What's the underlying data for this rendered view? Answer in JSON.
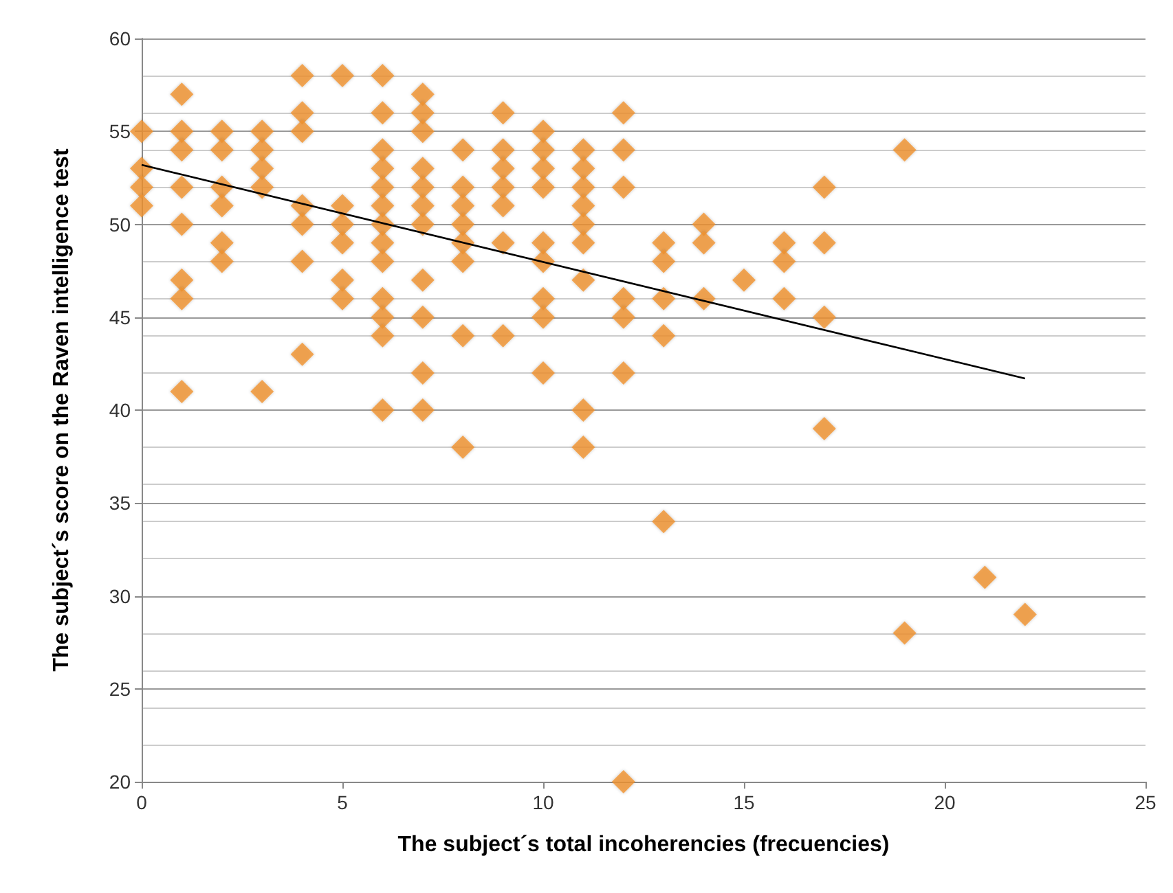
{
  "chart_data": {
    "type": "scatter",
    "xlabel": "The subject´s total incoherencies (frecuencies)",
    "ylabel": "The subject´s score on the Raven intelligence test",
    "xlim": [
      0,
      25
    ],
    "xticks": [
      0,
      5,
      10,
      15,
      20,
      25
    ],
    "ylim": [
      20,
      60
    ],
    "yticks": [
      20,
      25,
      30,
      35,
      40,
      45,
      50,
      55,
      60
    ],
    "grid": "y",
    "marker": "diamond",
    "series": [
      {
        "color": "#f0922e",
        "x": [
          0,
          0,
          0,
          0,
          1,
          1,
          1,
          1,
          1,
          1,
          1,
          1,
          2,
          2,
          2,
          2,
          2,
          2,
          3,
          3,
          3,
          3,
          3,
          4,
          4,
          4,
          4,
          4,
          4,
          4,
          5,
          5,
          5,
          5,
          5,
          5,
          6,
          6,
          6,
          6,
          6,
          6,
          6,
          6,
          6,
          6,
          6,
          6,
          6,
          7,
          7,
          7,
          7,
          7,
          7,
          7,
          7,
          7,
          7,
          7,
          8,
          8,
          8,
          8,
          8,
          8,
          8,
          8,
          9,
          9,
          9,
          9,
          9,
          9,
          9,
          10,
          10,
          10,
          10,
          10,
          10,
          10,
          10,
          10,
          11,
          11,
          11,
          11,
          11,
          11,
          11,
          11,
          11,
          12,
          12,
          12,
          12,
          12,
          12,
          12,
          13,
          13,
          13,
          13,
          13,
          14,
          14,
          14,
          15,
          16,
          16,
          16,
          17,
          17,
          17,
          17,
          19,
          19,
          21,
          22
        ],
        "values": [
          55,
          53,
          52,
          51,
          57,
          55,
          54,
          52,
          50,
          47,
          46,
          41,
          55,
          54,
          52,
          51,
          49,
          48,
          55,
          54,
          53,
          52,
          41,
          58,
          56,
          55,
          51,
          50,
          48,
          43,
          58,
          51,
          50,
          49,
          47,
          46,
          58,
          56,
          54,
          53,
          52,
          51,
          50,
          49,
          48,
          46,
          45,
          44,
          40,
          57,
          56,
          55,
          53,
          52,
          51,
          50,
          47,
          45,
          42,
          40,
          54,
          52,
          51,
          50,
          49,
          48,
          44,
          38,
          56,
          54,
          53,
          52,
          51,
          49,
          44,
          55,
          54,
          53,
          52,
          49,
          48,
          46,
          45,
          42,
          54,
          53,
          52,
          51,
          50,
          49,
          47,
          40,
          38,
          56,
          54,
          52,
          46,
          45,
          42,
          20,
          49,
          48,
          46,
          44,
          34,
          50,
          49,
          46,
          47,
          49,
          48,
          46,
          52,
          49,
          45,
          39,
          54,
          28,
          31,
          29
        ]
      },
      {
        "type": "line",
        "color": "#000000",
        "marker": "none",
        "line_style": "solid",
        "x": [
          0,
          22
        ],
        "values": [
          53.2,
          41.7
        ]
      }
    ]
  }
}
